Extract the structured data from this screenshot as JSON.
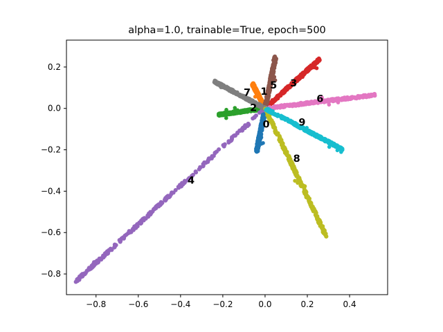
{
  "chart_data": {
    "type": "scatter",
    "title": "alpha=1.0, trainable=True, epoch=500",
    "xlabel": "",
    "ylabel": "",
    "xlim": [
      -0.94,
      0.58
    ],
    "ylim": [
      -0.9,
      0.33
    ],
    "xticks": [
      -0.8,
      -0.6,
      -0.4,
      -0.2,
      0.0,
      0.2,
      0.4
    ],
    "xtick_labels": [
      "−0.8",
      "−0.6",
      "−0.4",
      "−0.2",
      "0.0",
      "0.2",
      "0.4"
    ],
    "yticks": [
      -0.8,
      -0.6,
      -0.4,
      -0.2,
      0.0,
      0.2
    ],
    "ytick_labels": [
      "−0.8",
      "−0.6",
      "−0.4",
      "−0.2",
      "0.0",
      "0.2"
    ],
    "grid": false,
    "legend": "none",
    "series": [
      {
        "label": "0",
        "color": "#1f77b4",
        "end": [
          -0.04,
          -0.21
        ],
        "label_pos": [
          0.005,
          -0.08
        ]
      },
      {
        "label": "1",
        "color": "#ff7f0e",
        "end": [
          -0.06,
          0.12
        ],
        "label_pos": [
          -0.005,
          0.08
        ]
      },
      {
        "label": "2",
        "color": "#2ca02c",
        "end": [
          -0.22,
          -0.03
        ],
        "label_pos": [
          -0.055,
          0.0
        ]
      },
      {
        "label": "3",
        "color": "#d62728",
        "end": [
          0.26,
          0.24
        ],
        "label_pos": [
          0.135,
          0.12
        ]
      },
      {
        "label": "4",
        "color": "#9467bd",
        "end": [
          -0.9,
          -0.84
        ],
        "label_pos": [
          -0.35,
          -0.35
        ]
      },
      {
        "label": "5",
        "color": "#8c564b",
        "end": [
          0.05,
          0.25
        ],
        "label_pos": [
          0.04,
          0.11
        ]
      },
      {
        "label": "6",
        "color": "#e377c2",
        "end": [
          0.52,
          0.065
        ],
        "label_pos": [
          0.26,
          0.045
        ]
      },
      {
        "label": "7",
        "color": "#7f7f7f",
        "end": [
          -0.24,
          0.13
        ],
        "label_pos": [
          -0.085,
          0.075
        ]
      },
      {
        "label": "8",
        "color": "#bcbd22",
        "end": [
          0.29,
          -0.62
        ],
        "label_pos": [
          0.15,
          -0.245
        ]
      },
      {
        "label": "9",
        "color": "#17becf",
        "end": [
          0.37,
          -0.2
        ],
        "label_pos": [
          0.175,
          -0.07
        ]
      }
    ]
  }
}
